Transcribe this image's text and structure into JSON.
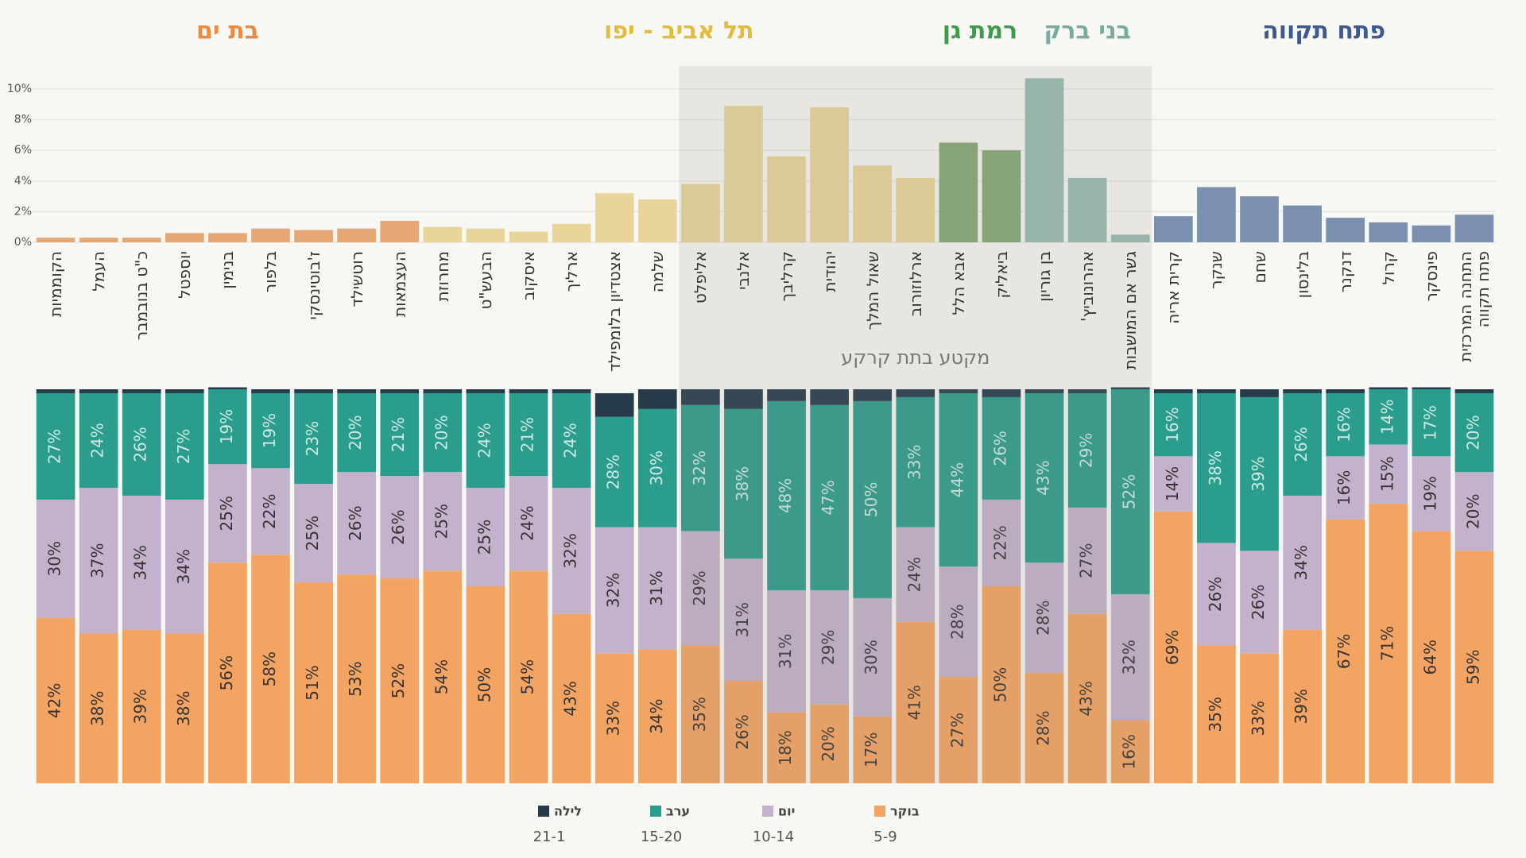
{
  "chart_data": [
    {
      "type": "bar",
      "categories": [
        "הקוממיות",
        "העמל",
        "כ\"ט בנובמבר",
        "יוספטל",
        "בנימין",
        "בלפור",
        "ז'בוטינסקי",
        "רוטשילד",
        "העצמאות",
        "מחרוזת",
        "הבעש\"ט",
        "איסקוב",
        "ארליך",
        "אצטדיון בלומפילד",
        "שלמה",
        "אליפלט",
        "אלנבי",
        "קרליבך",
        "יהודית",
        "שאול המלך",
        "ארלוזורוב",
        "אבא הלל",
        "ביאליק",
        "בן גוריון",
        "אהרונוביץ'",
        "גשר אם המושבות",
        "קרית אריה",
        "שנקר",
        "שחם",
        "בלינסון",
        "דנקנר",
        "קרול",
        "פינסקר",
        "התחנה המרכזית פתח תקווה"
      ],
      "values": [
        0.3,
        0.3,
        0.3,
        0.6,
        0.6,
        0.9,
        0.8,
        0.9,
        1.4,
        1.0,
        0.9,
        0.7,
        1.2,
        3.2,
        2.8,
        3.8,
        8.9,
        5.6,
        8.8,
        5.0,
        4.2,
        6.5,
        6.0,
        10.7,
        4.2,
        0.5,
        1.7,
        3.6,
        3.0,
        2.4,
        1.6,
        1.3,
        1.1,
        1.8
      ],
      "colors": [
        "#e4a775",
        "#e4a775",
        "#e4a775",
        "#e4a775",
        "#e4a775",
        "#e4a775",
        "#e4a775",
        "#e4a775",
        "#e4a775",
        "#e9d49a",
        "#e9d49a",
        "#e9d49a",
        "#e9d49a",
        "#e9d49a",
        "#e9d49a",
        "#e9d49a",
        "#e9d49a",
        "#e9d49a",
        "#e9d49a",
        "#e9d49a",
        "#e9d49a",
        "#84a877",
        "#84a877",
        "#95bbb2",
        "#95bbb2",
        "#95bbb2",
        "#7b8fae",
        "#7b8fae",
        "#7b8fae",
        "#7b8fae",
        "#7b8fae",
        "#7b8fae",
        "#7b8fae",
        "#7b8fae"
      ],
      "groups": [
        {
          "name": "בת ים",
          "color": "#ee8a3e",
          "bar_color": "#e4a775"
        },
        {
          "name": "תל אביב - יפו",
          "color": "#e3bd3a",
          "bar_color": "#e9d49a"
        },
        {
          "name": "רמת גן",
          "color": "#3e9a4c",
          "bar_color": "#84a877"
        },
        {
          "name": "בני ברק",
          "color": "#79aba3",
          "bar_color": "#95bbb2"
        },
        {
          "name": "פתח תקווה",
          "color": "#3d5a8e",
          "bar_color": "#7b8fae"
        }
      ],
      "ylim": [
        0,
        11.5
      ],
      "yticks": [
        {
          "value": 0,
          "label": "0%"
        },
        {
          "value": 2,
          "label": "2%"
        },
        {
          "value": 4,
          "label": "4%"
        },
        {
          "value": 6,
          "label": "6%"
        },
        {
          "value": 8,
          "label": "8%"
        },
        {
          "value": 10,
          "label": "10%"
        }
      ],
      "grid": true,
      "annotation": {
        "text": "מקטע בתת קרקע",
        "from": "אליפלט",
        "to": "גשר אם המושבות"
      }
    },
    {
      "type": "stacked_bar",
      "ylim": [
        0,
        100
      ],
      "series": [
        {
          "name": "בוקר",
          "hours": "5-9",
          "color": "#f3a462",
          "label_color": "#333333",
          "values": [
            42,
            38,
            39,
            38,
            56,
            58,
            51,
            53,
            52,
            54,
            50,
            54,
            43,
            33,
            34,
            35,
            26,
            18,
            20,
            17,
            41,
            27,
            50,
            28,
            43,
            16,
            69,
            35,
            33,
            39,
            67,
            71,
            64,
            59
          ],
          "value_labels": [
            "42%",
            "38%",
            "39%",
            "38%",
            "56%",
            "58%",
            "51%",
            "53%",
            "52%",
            "54%",
            "50%",
            "54%",
            "43%",
            "33%",
            "34%",
            "35%",
            "26%",
            "18%",
            "20%",
            "17%",
            "41%",
            "27%",
            "50%",
            "28%",
            "43%",
            "16%",
            "69%",
            "35%",
            "33%",
            "39%",
            "67%",
            "71%",
            "64%",
            "59%"
          ]
        },
        {
          "name": "יום",
          "hours": "10-14",
          "color": "#c4b2cc",
          "label_color": "#333333",
          "values": [
            30,
            37,
            34,
            34,
            25,
            22,
            25,
            26,
            26,
            25,
            25,
            24,
            32,
            32,
            31,
            29,
            31,
            31,
            29,
            30,
            24,
            28,
            22,
            28,
            27,
            32,
            14,
            26,
            26,
            34,
            16,
            15,
            19,
            20
          ],
          "value_labels": [
            "30%",
            "37%",
            "34%",
            "34%",
            "25%",
            "22%",
            "25%",
            "26%",
            "26%",
            "25%",
            "25%",
            "24%",
            "32%",
            "32%",
            "31%",
            "29%",
            "31%",
            "31%",
            "29%",
            "30%",
            "24%",
            "28%",
            "22%",
            "28%",
            "27%",
            "32%",
            "14%",
            "26%",
            "26%",
            "34%",
            "16%",
            "15%",
            "19%",
            "20%"
          ]
        },
        {
          "name": "ערב",
          "hours": "15-20",
          "color": "#2a9d8c",
          "label_color": "#cfe9e4",
          "values": [
            27,
            24,
            26,
            27,
            19,
            19,
            23,
            20,
            21,
            20,
            24,
            21,
            24,
            28,
            30,
            32,
            38,
            48,
            47,
            50,
            33,
            44,
            26,
            43,
            29,
            52,
            16,
            38,
            39,
            26,
            16,
            14,
            17,
            20
          ],
          "value_labels": [
            "27%",
            "24%",
            "26%",
            "27%",
            "19%",
            "19%",
            "23%",
            "20%",
            "21%",
            "20%",
            "24%",
            "21%",
            "24%",
            "28%",
            "30%",
            "32%",
            "38%",
            "48%",
            "47%",
            "50%",
            "33%",
            "44%",
            "26%",
            "43%",
            "29%",
            "52%",
            "16%",
            "38%",
            "39%",
            "26%",
            "16%",
            "14%",
            "17%",
            "20%"
          ]
        },
        {
          "name": "לילה",
          "hours": "21-1",
          "color": "#263a4a",
          "values": [
            1,
            1,
            1,
            1,
            0.5,
            1,
            1,
            1,
            1,
            1,
            1,
            1,
            1,
            6,
            5,
            4,
            5,
            3,
            4,
            3,
            2,
            1,
            2,
            1,
            1,
            0.5,
            1,
            1,
            2,
            1,
            1,
            0.5,
            0.5,
            1
          ]
        }
      ]
    }
  ]
}
